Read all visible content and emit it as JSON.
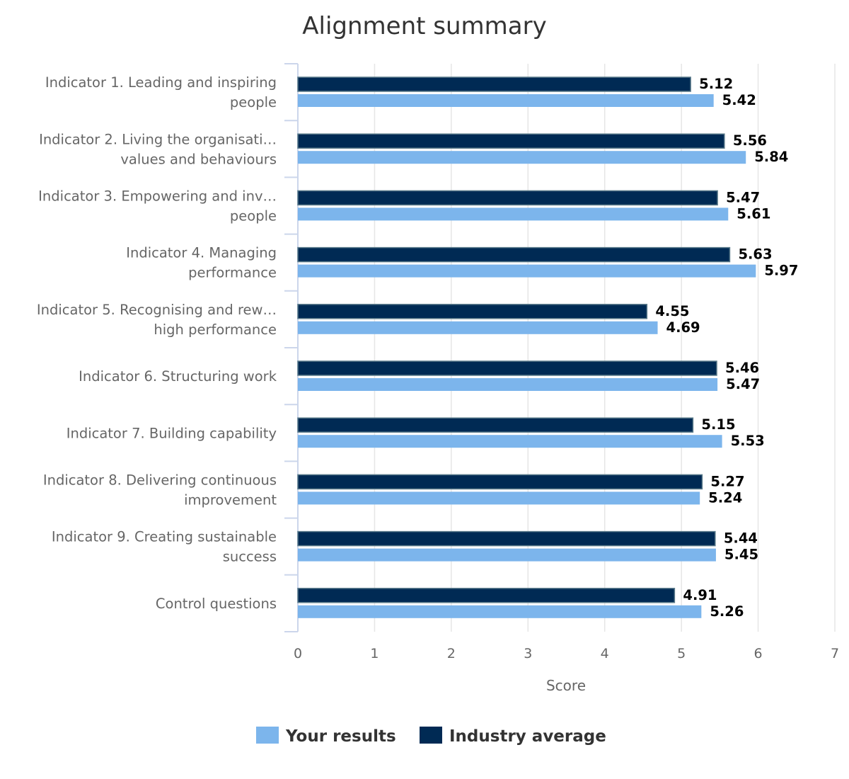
{
  "chart_data": {
    "type": "bar",
    "orientation": "horizontal",
    "title": "Alignment summary",
    "xlabel": "Score",
    "ylabel": "",
    "xlim": [
      0,
      7
    ],
    "ticks": [
      "0",
      "1",
      "2",
      "3",
      "4",
      "5",
      "6",
      "7"
    ],
    "grid": true,
    "legend_position": "bottom",
    "categories": [
      [
        "Indicator 1. Leading and inspiring",
        "people"
      ],
      [
        "Indicator 2. Living the organisati…",
        "values and behaviours"
      ],
      [
        "Indicator 3. Empowering and inv…",
        "people"
      ],
      [
        "Indicator 4. Managing",
        "performance"
      ],
      [
        "Indicator 5. Recognising and rew…",
        "high performance"
      ],
      [
        "Indicator 6. Structuring work"
      ],
      [
        "Indicator 7. Building capability"
      ],
      [
        "Indicator 8. Delivering continuous",
        "improvement"
      ],
      [
        "Indicator 9. Creating sustainable",
        "success"
      ],
      [
        "Control questions"
      ]
    ],
    "series": [
      {
        "name": "Industry average",
        "color": "#002a54",
        "border": "#5a7a8a",
        "values": [
          5.12,
          5.56,
          5.47,
          5.63,
          4.55,
          5.46,
          5.15,
          5.27,
          5.44,
          4.91
        ]
      },
      {
        "name": "Your results",
        "color": "#7cb5ec",
        "values": [
          5.42,
          5.84,
          5.61,
          5.97,
          4.69,
          5.47,
          5.53,
          5.24,
          5.45,
          5.26
        ]
      }
    ],
    "legend_order": [
      "Your results",
      "Industry average"
    ]
  }
}
